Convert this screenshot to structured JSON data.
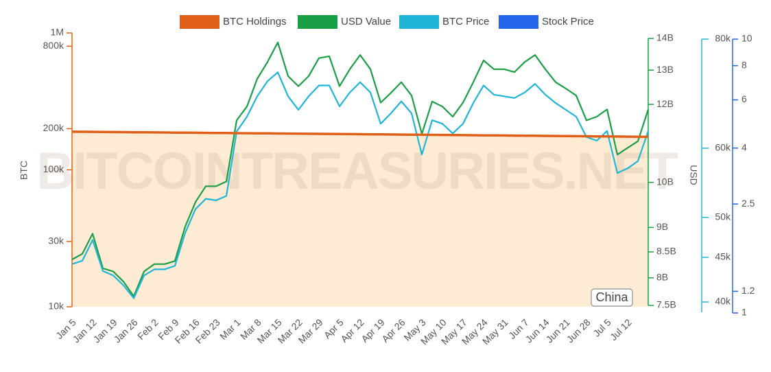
{
  "chart_data": {
    "type": "line",
    "log_scale": true,
    "watermark": "BITCOINTREASURIES.NET",
    "annotation": "China",
    "y_label": "BTC",
    "y2_label": "USD",
    "categories": [
      "Jan 5",
      null,
      "Jan 12",
      null,
      "Jan 19",
      null,
      "Jan 26",
      null,
      "Feb 2",
      null,
      "Feb 9",
      null,
      "Feb 16",
      null,
      "Feb 23",
      null,
      "Mar 1",
      null,
      "Mar 8",
      null,
      "Mar 15",
      null,
      "Mar 22",
      null,
      "Mar 29",
      null,
      "Apr 5",
      null,
      "Apr 12",
      null,
      "Apr 19",
      null,
      "Apr 26",
      null,
      "May 3",
      null,
      "May 10",
      null,
      "May 17",
      null,
      "May 24",
      null,
      "May 31",
      null,
      "Jun 7",
      null,
      "Jun 14",
      null,
      "Jun 21",
      null,
      "Jun 28",
      null,
      "Jul 5",
      null,
      "Jul 12",
      null,
      null
    ],
    "series": [
      {
        "name": "BTC Holdings",
        "color": "#e0601a",
        "axis": "y",
        "area_color": "#fde8cc",
        "values": [
          190000,
          189720,
          189440,
          189160,
          188880,
          188600,
          188320,
          188040,
          187760,
          187480,
          187200,
          186920,
          186640,
          186360,
          186080,
          185800,
          185520,
          185240,
          184960,
          184680,
          184400,
          184120,
          183840,
          183560,
          183280,
          183000,
          182720,
          182440,
          182160,
          181880,
          181600,
          181320,
          181040,
          180760,
          180480,
          180200,
          179920,
          179640,
          179360,
          179080,
          178800,
          178520,
          178240,
          177960,
          177680,
          177400,
          177120,
          176840,
          176560,
          176280,
          176000,
          175720,
          175440,
          175160,
          174880,
          174600,
          174320
        ]
      },
      {
        "name": "USD Value",
        "color": "#1a9e45",
        "axis": "y2",
        "values": [
          8350000000.0,
          8460000000.0,
          8870000000.0,
          8180000000.0,
          8120000000.0,
          7930000000.0,
          7660000000.0,
          8120000000.0,
          8260000000.0,
          8260000000.0,
          8320000000.0,
          9020000000.0,
          9550000000.0,
          9910000000.0,
          9910000000.0,
          10020000000.0,
          11560000000.0,
          11940000000.0,
          12740000000.0,
          13250000000.0,
          13870000000.0,
          12820000000.0,
          12520000000.0,
          12820000000.0,
          13370000000.0,
          13430000000.0,
          12520000000.0,
          13030000000.0,
          13470000000.0,
          13030000000.0,
          12050000000.0,
          12330000000.0,
          12640000000.0,
          12250000000.0,
          11200000000.0,
          12080000000.0,
          11940000000.0,
          11660000000.0,
          12050000000.0,
          12640000000.0,
          13300000000.0,
          13030000000.0,
          13030000000.0,
          12940000000.0,
          13250000000.0,
          13470000000.0,
          13030000000.0,
          12640000000.0,
          12450000000.0,
          12250000000.0,
          11560000000.0,
          11660000000.0,
          11860000000.0,
          10670000000.0,
          10840000000.0,
          11010000000.0,
          11860000000.0
        ]
      },
      {
        "name": "BTC Price",
        "color": "#1fb5d6",
        "axis": "y3",
        "values": [
          44200,
          44600,
          47100,
          43400,
          42900,
          41800,
          40400,
          42900,
          43600,
          43600,
          44000,
          48000,
          51100,
          52500,
          52300,
          52900,
          62700,
          65200,
          68800,
          71600,
          73300,
          68800,
          66400,
          68800,
          70800,
          70800,
          67000,
          69500,
          71400,
          69500,
          64000,
          65800,
          67900,
          65800,
          59000,
          64600,
          64000,
          62400,
          64000,
          67600,
          70800,
          69100,
          68800,
          68500,
          69500,
          71100,
          69100,
          67600,
          66400,
          65200,
          61800,
          61200,
          62800,
          56200,
          56900,
          58000,
          62800
        ]
      },
      {
        "name": "Stock Price",
        "color": "#2563eb",
        "axis": "y4",
        "values": [
          null,
          null,
          null,
          null,
          null,
          null,
          null,
          null,
          null,
          null,
          null,
          null,
          null,
          null,
          null,
          null,
          null,
          null,
          null,
          null,
          null,
          null,
          null,
          null,
          null,
          null,
          null,
          null,
          null,
          null,
          null,
          null,
          null,
          null,
          null,
          null,
          null,
          null,
          null,
          null,
          null,
          null,
          null,
          null,
          null,
          null,
          null,
          null,
          null,
          null,
          null,
          null,
          null,
          null,
          null,
          null,
          null
        ]
      }
    ],
    "ylim": [
      10000,
      1000000
    ],
    "yticks": [
      {
        "value": 10000,
        "label": "10k"
      },
      {
        "value": 30000,
        "label": "30k"
      },
      {
        "value": 100000,
        "label": "100k"
      },
      {
        "value": 200000,
        "label": "200k"
      },
      {
        "value": 800000,
        "label": "800k"
      },
      {
        "value": 1000000,
        "label": "1M"
      }
    ],
    "y2lim": [
      7500000000.0,
      14000000000.0
    ],
    "y2ticks": [
      {
        "value": 7500000000.0,
        "label": "7.5B"
      },
      {
        "value": 8000000000.0,
        "label": "8B"
      },
      {
        "value": 8500000000.0,
        "label": "8.5B"
      },
      {
        "value": 9000000000.0,
        "label": "9B"
      },
      {
        "value": 10000000000.0,
        "label": "10B"
      },
      {
        "value": 12000000000.0,
        "label": "12B"
      },
      {
        "value": 13000000000.0,
        "label": "13B"
      },
      {
        "value": 14000000000.0,
        "label": "14B"
      }
    ],
    "y3lim": [
      40000,
      80000
    ],
    "y3ticks": [
      {
        "value": 40000,
        "label": "40k"
      },
      {
        "value": 45000,
        "label": "45k"
      },
      {
        "value": 50000,
        "label": "50k"
      },
      {
        "value": 60000,
        "label": "60k"
      },
      {
        "value": 80000,
        "label": "80k"
      }
    ],
    "y4lim": [
      1,
      10
    ],
    "y4ticks": [
      1,
      1.2,
      2.5,
      4,
      6,
      8,
      10
    ]
  }
}
